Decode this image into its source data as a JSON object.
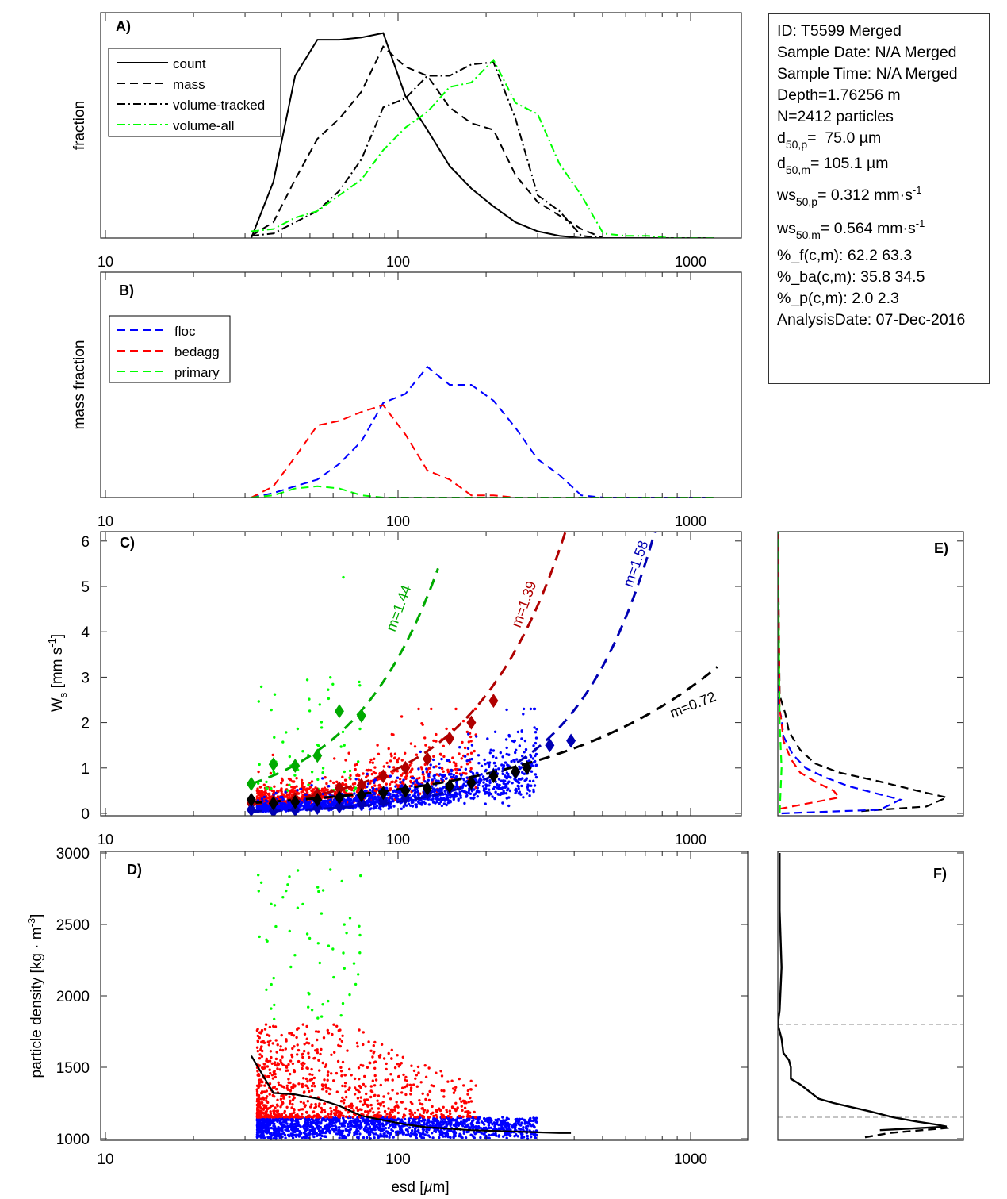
{
  "info_box": {
    "id": "ID: T5599 Merged",
    "sample_date": "Sample Date: N/A Merged",
    "sample_time": "Sample Time: N/A Merged",
    "depth": "Depth=1.76256 m",
    "n": "N=2412 particles",
    "d50p": {
      "base": "d",
      "sub": "50,p",
      "tail": "=  75.0 µm"
    },
    "d50m": {
      "base": "d",
      "sub": "50,m",
      "tail": "= 105.1 µm"
    },
    "ws50p": {
      "base": "ws",
      "sub": "50,p",
      "tail": "= 0.312 mm·s",
      "sup": "-1"
    },
    "ws50m": {
      "base": "ws",
      "sub": "50,m",
      "tail": "= 0.564 mm·s",
      "sup": "-1"
    },
    "pct_f": "%_f(c,m): 62.2 63.3",
    "pct_ba": "%_ba(c,m): 35.8 34.5",
    "pct_p": "%_p(c,m): 2.0 2.3",
    "analysis_date": "AnalysisDate: 07-Dec-2016"
  },
  "colors": {
    "black": "#000000",
    "green_line": "#00ff00",
    "green_fit": "#00aa00",
    "red": "#ff0000",
    "dark_red": "#b00000",
    "blue": "#0000ff",
    "dark_blue": "#0000b4",
    "gray": "#888888"
  },
  "x_axis": {
    "label_prefix": "esd [",
    "label_mu": "µ",
    "label_suffix": "m]",
    "scale": "log",
    "tick_labels": [
      "10",
      "100",
      "1000"
    ],
    "ticks": [
      10,
      100,
      1000
    ]
  },
  "chart_data": [
    {
      "panel": "A",
      "panel_label": "A)",
      "type": "line",
      "ylabel": "fraction",
      "xscale": "log",
      "legend_placement": "top-left",
      "x": [
        31.5,
        37.5,
        44.5,
        53,
        63,
        75,
        89,
        106,
        126,
        150,
        178,
        212,
        252,
        300,
        356,
        423,
        503,
        599,
        712,
        847,
        1007,
        1198
      ],
      "series": [
        {
          "name": "count",
          "style": "solid",
          "color": "#000000",
          "values": [
            0,
            0.25,
            0.72,
            0.88,
            0.88,
            0.89,
            0.91,
            0.63,
            0.48,
            0.32,
            0.22,
            0.14,
            0.07,
            0.03,
            0.01,
            0,
            0,
            0,
            0,
            0,
            0,
            0
          ]
        },
        {
          "name": "mass",
          "style": "dashed",
          "color": "#000000",
          "values": [
            0.01,
            0.07,
            0.26,
            0.44,
            0.53,
            0.65,
            0.85,
            0.76,
            0.72,
            0.58,
            0.51,
            0.48,
            0.28,
            0.16,
            0.1,
            0.04,
            0,
            0,
            0,
            0,
            0,
            0
          ]
        },
        {
          "name": "volume-tracked",
          "style": "dashdot",
          "color": "#000000",
          "values": [
            0.01,
            0.02,
            0.07,
            0.12,
            0.21,
            0.35,
            0.58,
            0.62,
            0.72,
            0.72,
            0.77,
            0.78,
            0.53,
            0.19,
            0.12,
            0.01,
            0,
            0,
            0,
            0,
            0,
            0
          ]
        },
        {
          "name": "volume-all",
          "style": "dashdot",
          "color": "#00ff00",
          "values": [
            0.03,
            0.04,
            0.09,
            0.12,
            0.19,
            0.26,
            0.39,
            0.49,
            0.56,
            0.67,
            0.69,
            0.79,
            0.6,
            0.55,
            0.33,
            0.19,
            0.02,
            0.01,
            0.01,
            0,
            0,
            0
          ]
        }
      ]
    },
    {
      "panel": "B",
      "panel_label": "B)",
      "type": "line",
      "ylabel": "mass fraction",
      "xscale": "log",
      "legend_placement": "top-left",
      "x": [
        31.5,
        37.5,
        44.5,
        53,
        63,
        75,
        89,
        106,
        126,
        150,
        178,
        212,
        252,
        300,
        356,
        423,
        503,
        599,
        712,
        847,
        1007,
        1198
      ],
      "series": [
        {
          "name": "floc",
          "style": "dashed",
          "color": "#0000ff",
          "values": [
            0,
            0.02,
            0.05,
            0.08,
            0.15,
            0.25,
            0.42,
            0.46,
            0.58,
            0.5,
            0.5,
            0.43,
            0.31,
            0.17,
            0.1,
            0.01,
            0,
            0,
            0,
            0,
            0,
            0
          ]
        },
        {
          "name": "bedagg",
          "style": "dashed",
          "color": "#ff0000",
          "values": [
            0,
            0.05,
            0.18,
            0.32,
            0.34,
            0.38,
            0.41,
            0.28,
            0.12,
            0.08,
            0.01,
            0.01,
            0,
            0,
            0,
            0,
            0,
            0,
            0,
            0,
            0,
            0
          ]
        },
        {
          "name": "primary",
          "style": "dashed",
          "color": "#00ff00",
          "values": [
            0,
            0.01,
            0.04,
            0.05,
            0.04,
            0.01,
            0,
            0,
            0,
            0,
            0,
            0,
            0,
            0,
            0,
            0,
            0,
            0,
            0,
            0,
            0,
            0
          ]
        }
      ]
    },
    {
      "panel": "C",
      "panel_label": "C)",
      "type": "scatter",
      "xscale": "log",
      "ylabel_main": "W",
      "ylabel_sub": "s",
      "ylabel_unit": " [mm s",
      "ylabel_sup": "-1",
      "ylabel_close": "]",
      "ylim": [
        0,
        6.2
      ],
      "yticks": [
        0,
        1,
        2,
        3,
        4,
        5,
        6
      ],
      "ytick_labels": [
        "0",
        "1",
        "2",
        "3",
        "4",
        "5",
        "6"
      ],
      "bin_means": [
        {
          "class": "primary",
          "color": "#00aa00",
          "x": [
            31.5,
            37.5,
            44.5,
            53,
            63,
            75
          ],
          "y": [
            0.65,
            1.08,
            1.05,
            1.27,
            2.25,
            2.15
          ]
        },
        {
          "class": "bedagg",
          "color": "#b00000",
          "x": [
            31.5,
            37.5,
            44.5,
            53,
            63,
            75,
            89,
            106,
            126,
            150,
            178,
            212
          ],
          "y": [
            0.22,
            0.25,
            0.32,
            0.42,
            0.55,
            0.62,
            0.82,
            1.0,
            1.2,
            1.65,
            2.0,
            2.48
          ]
        },
        {
          "class": "floc",
          "color": "#0000b4",
          "x": [
            31.5,
            37.5,
            44.5,
            53,
            63,
            75,
            89,
            106,
            126,
            150,
            178,
            212,
            252,
            276,
            330,
            390
          ],
          "y": [
            0.08,
            0.05,
            0.08,
            0.12,
            0.15,
            0.22,
            0.28,
            0.35,
            0.45,
            0.55,
            0.65,
            0.85,
            0.9,
            1.0,
            1.5,
            1.6
          ]
        },
        {
          "class": "all",
          "color": "#000000",
          "x": [
            31.5,
            37.5,
            44.5,
            53,
            63,
            75,
            89,
            106,
            126,
            150,
            178,
            212,
            252,
            276
          ],
          "y": [
            0.3,
            0.22,
            0.25,
            0.3,
            0.35,
            0.4,
            0.45,
            0.5,
            0.55,
            0.6,
            0.68,
            0.82,
            0.92,
            1.0
          ]
        }
      ],
      "fits": [
        {
          "label": "m=1.44",
          "m": 1.44,
          "a": 0.00452,
          "color": "#00aa00",
          "x_range": [
            31.5,
            137
          ]
        },
        {
          "label": "m=1.39",
          "m": 1.39,
          "a": 0.00165,
          "color": "#b00000",
          "x_range": [
            31.5,
            373
          ]
        },
        {
          "label": "m=1.58",
          "m": 1.58,
          "a": 0.000176,
          "color": "#0000b4",
          "x_range": [
            31.5,
            755
          ]
        },
        {
          "label": "m=0.72",
          "m": 0.72,
          "a": 0.0192,
          "color": "#000000",
          "x_range": [
            31.5,
            1233
          ]
        }
      ],
      "scatter_classes": [
        {
          "name": "floc",
          "color": "#0000ff"
        },
        {
          "name": "bedagg",
          "color": "#ff0000"
        },
        {
          "name": "primary",
          "color": "#00ff00"
        }
      ]
    },
    {
      "panel": "D",
      "panel_label": "D)",
      "type": "scatter",
      "xscale": "log",
      "ylabel_main": "particle density [kg · m",
      "ylabel_sup": "-3",
      "ylabel_close": "]",
      "ylim": [
        1000,
        3000
      ],
      "yticks": [
        1000,
        1500,
        2000,
        2500,
        3000
      ],
      "ytick_labels": [
        "1000",
        "1500",
        "2000",
        "2500",
        "3000"
      ],
      "mean_line": {
        "x": [
          31.5,
          37.5,
          44.5,
          53,
          63,
          75,
          89,
          106,
          126,
          150,
          178,
          212,
          252,
          300,
          356,
          390
        ],
        "y": [
          1580,
          1320,
          1310,
          1280,
          1230,
          1160,
          1130,
          1100,
          1080,
          1070,
          1060,
          1055,
          1050,
          1045,
          1040,
          1040
        ]
      }
    },
    {
      "panel": "E",
      "panel_label": "E)",
      "type": "line",
      "orientation": "horizontal",
      "ylim": [
        0,
        6.2
      ],
      "yticks": [
        0,
        1,
        2,
        3,
        4,
        5,
        6
      ],
      "series": [
        {
          "class": "all",
          "color": "#000000",
          "y": [
            0.05,
            0.15,
            0.35,
            0.5,
            0.7,
            0.9,
            1.1,
            1.4,
            1.8,
            2.2,
            2.6,
            6.2
          ],
          "x": [
            0.45,
            0.8,
            0.91,
            0.75,
            0.55,
            0.33,
            0.2,
            0.12,
            0.06,
            0.04,
            0.01,
            0
          ]
        },
        {
          "class": "floc",
          "color": "#0000ff",
          "y": [
            0,
            0.08,
            0.3,
            0.45,
            0.6,
            0.8,
            1.0,
            1.3,
            1.7,
            2.1,
            2.4,
            6.2
          ],
          "x": [
            0.02,
            0.55,
            0.66,
            0.52,
            0.38,
            0.25,
            0.15,
            0.08,
            0.03,
            0.02,
            0,
            0
          ]
        },
        {
          "class": "bedagg",
          "color": "#ff0000",
          "y": [
            0.1,
            0.35,
            0.5,
            0.7,
            0.9,
            1.2,
            1.6,
            2.0,
            2.3,
            6.2
          ],
          "x": [
            0.01,
            0.33,
            0.3,
            0.2,
            0.12,
            0.07,
            0.03,
            0.02,
            0.01,
            0
          ]
        },
        {
          "class": "primary",
          "color": "#00ff00",
          "y": [
            0,
            1,
            2,
            6.2
          ],
          "x": [
            0.01,
            0.02,
            0.01,
            0
          ]
        }
      ]
    },
    {
      "panel": "F",
      "panel_label": "F)",
      "type": "line",
      "orientation": "horizontal",
      "ylim": [
        1000,
        3000
      ],
      "yticks": [
        1000,
        1500,
        2000,
        2500,
        3000
      ],
      "reference_lines": [
        1800,
        1150
      ],
      "series": [
        {
          "style": "solid",
          "color": "#000000",
          "y": [
            3000,
            2600,
            2200,
            1900,
            1800,
            1700,
            1600,
            1550,
            1500,
            1420,
            1380,
            1320,
            1280,
            1250,
            1220,
            1190,
            1150,
            1120,
            1100,
            1085,
            1070,
            1060
          ],
          "x": [
            0.01,
            0.01,
            0.02,
            0.01,
            0.0,
            0.02,
            0.03,
            0.06,
            0.07,
            0.07,
            0.12,
            0.18,
            0.22,
            0.3,
            0.4,
            0.5,
            0.62,
            0.75,
            0.85,
            0.91,
            0.7,
            0.55
          ]
        },
        {
          "style": "dashed",
          "color": "#000000",
          "y": [
            1010,
            1040,
            1075,
            1085
          ],
          "x": [
            0.47,
            0.6,
            0.91,
            0.9
          ]
        }
      ]
    }
  ]
}
